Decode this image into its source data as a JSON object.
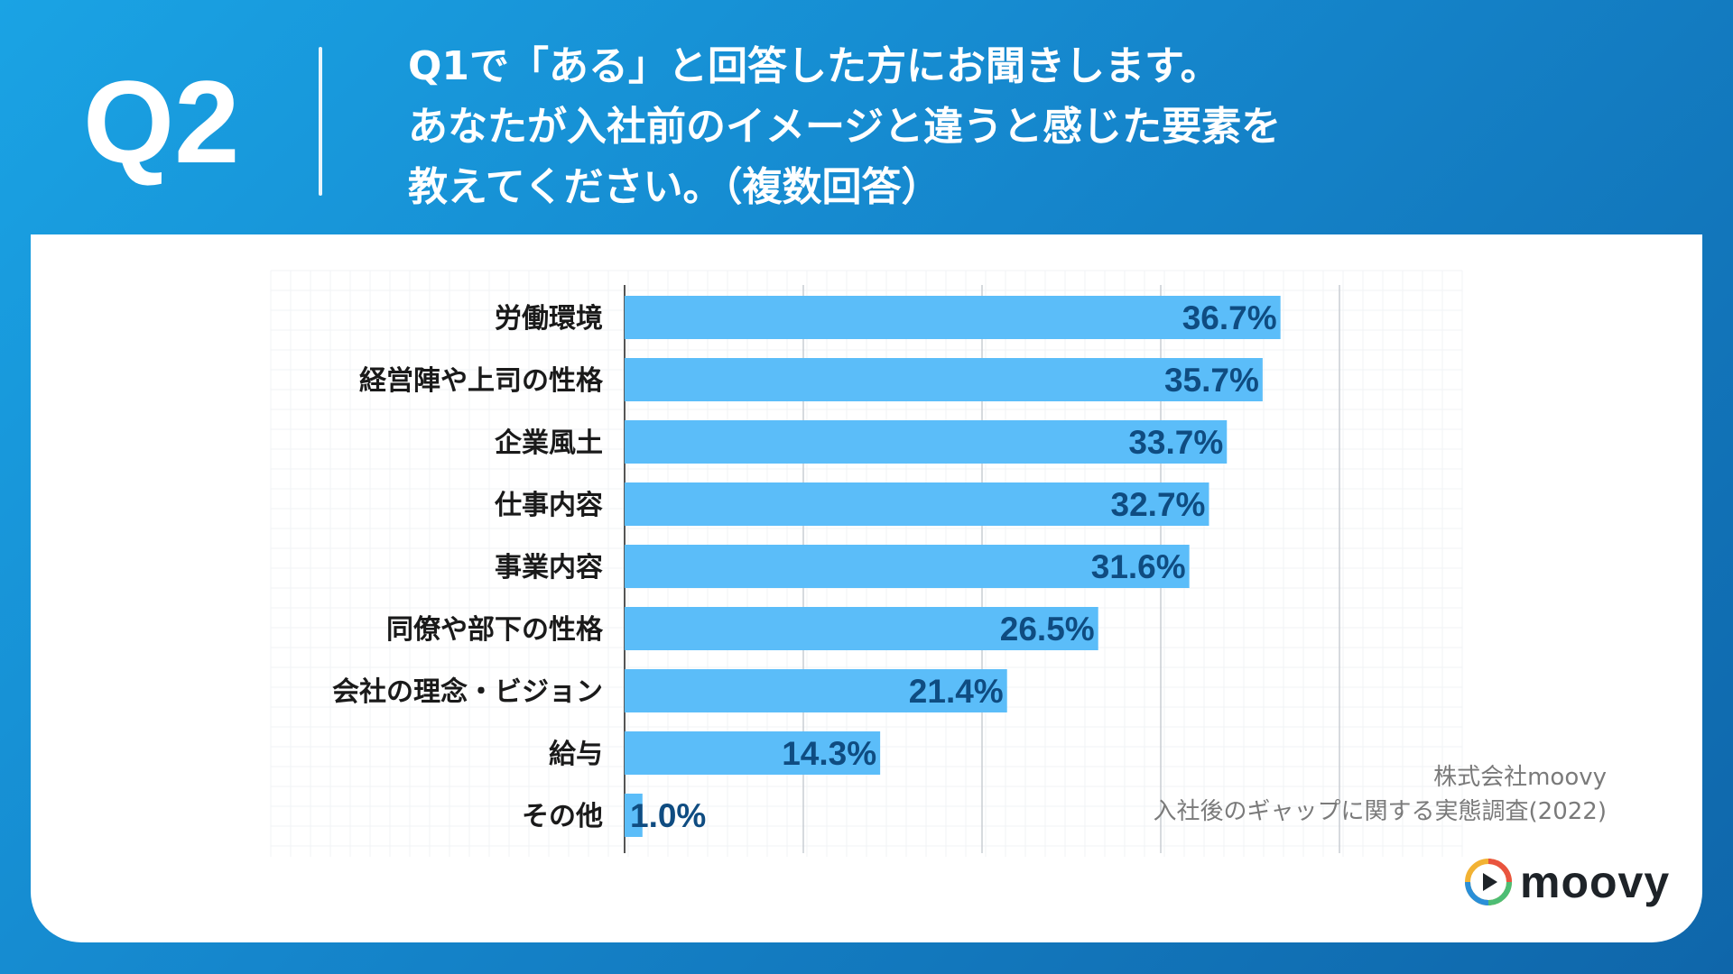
{
  "header": {
    "q_label": "Q2",
    "question_lines": [
      "Q1で「ある」と回答した方にお聞きします。",
      "あなたが入社前のイメージと違うと感じた要素を",
      "教えてください。（複数回答）"
    ]
  },
  "chart_data": {
    "type": "bar",
    "orientation": "horizontal",
    "categories": [
      "労働環境",
      "経営陣や上司の性格",
      "企業風土",
      "仕事内容",
      "事業内容",
      "同僚や部下の性格",
      "会社の理念・ビジョン",
      "給与",
      "その他"
    ],
    "values": [
      36.7,
      35.7,
      33.7,
      32.7,
      31.6,
      26.5,
      21.4,
      14.3,
      1.0
    ],
    "value_labels": [
      "36.7%",
      "35.7%",
      "33.7%",
      "32.7%",
      "31.6%",
      "26.5%",
      "21.4%",
      "14.3%",
      "1.0%"
    ],
    "xlim": [
      0,
      40
    ],
    "grid": true,
    "bar_color": "#5bbdf9",
    "label_color": "#0f4c81"
  },
  "source": {
    "company": "株式会社moovy",
    "survey": "入社後のギャップに関する実態調査(2022)"
  },
  "logo": {
    "text": "moovy",
    "icon": "play-icon"
  }
}
